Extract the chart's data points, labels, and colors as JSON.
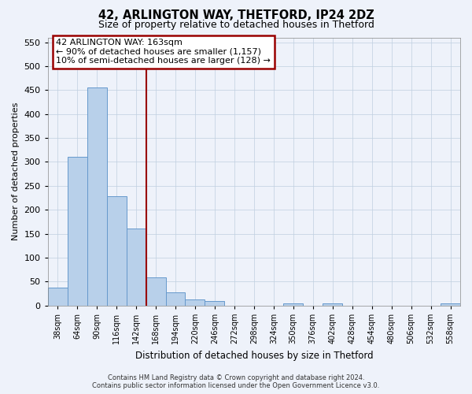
{
  "title": "42, ARLINGTON WAY, THETFORD, IP24 2DZ",
  "subtitle": "Size of property relative to detached houses in Thetford",
  "xlabel": "Distribution of detached houses by size in Thetford",
  "ylabel": "Number of detached properties",
  "bar_categories": [
    "38sqm",
    "64sqm",
    "90sqm",
    "116sqm",
    "142sqm",
    "168sqm",
    "194sqm",
    "220sqm",
    "246sqm",
    "272sqm",
    "298sqm",
    "324sqm",
    "350sqm",
    "376sqm",
    "402sqm",
    "428sqm",
    "454sqm",
    "480sqm",
    "506sqm",
    "532sqm",
    "558sqm"
  ],
  "bar_values": [
    37,
    311,
    456,
    228,
    160,
    58,
    27,
    12,
    9,
    0,
    0,
    0,
    4,
    0,
    4,
    0,
    0,
    0,
    0,
    0,
    4
  ],
  "bar_color": "#b8d0ea",
  "bar_edgecolor": "#6699cc",
  "property_line_x": 4.5,
  "property_line_color": "#990000",
  "annotation_text": "42 ARLINGTON WAY: 163sqm\n← 90% of detached houses are smaller (1,157)\n10% of semi-detached houses are larger (128) →",
  "annotation_box_facecolor": "#ffffff",
  "annotation_box_edgecolor": "#990000",
  "ylim": [
    0,
    560
  ],
  "yticks": [
    0,
    50,
    100,
    150,
    200,
    250,
    300,
    350,
    400,
    450,
    500,
    550
  ],
  "background_color": "#eef2fa",
  "grid_color": "#c0cfe0",
  "footer_line1": "Contains HM Land Registry data © Crown copyright and database right 2024.",
  "footer_line2": "Contains public sector information licensed under the Open Government Licence v3.0."
}
